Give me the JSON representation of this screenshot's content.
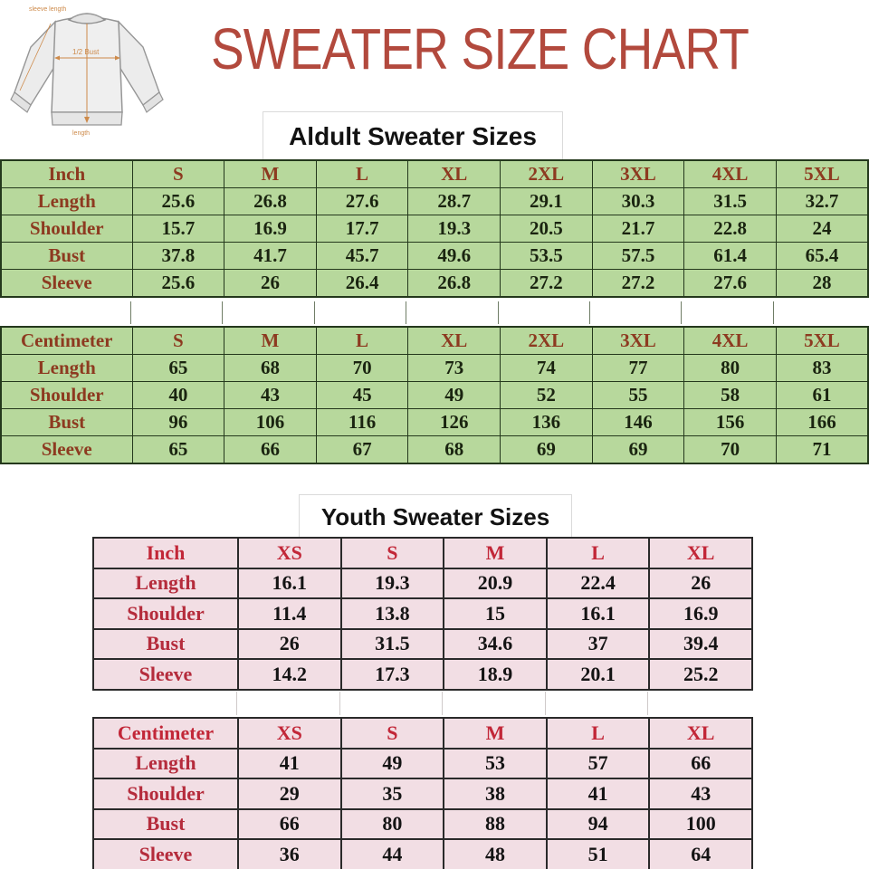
{
  "title": "SWEATER SIZE CHART",
  "sections": {
    "adult": {
      "heading": "Aldult Sweater Sizes"
    },
    "youth": {
      "heading": "Youth Sweater Sizes"
    }
  },
  "diagram": {
    "labels": {
      "sleeve": "sleeve length",
      "bust": "1/2 Bust",
      "length": "length"
    }
  },
  "colors": {
    "title": "#b2493d",
    "adult_table_bg": "#b7d89c",
    "adult_table_border": "#24381c",
    "adult_header_text": "#8d3a20",
    "adult_value_text": "#1a2410",
    "youth_table_bg": "#f2dee4",
    "youth_table_border": "#2a2a2a",
    "youth_header_text": "#c22738",
    "youth_value_text": "#141414",
    "annotation_orange": "#cd8a4a"
  },
  "tables": {
    "adult_inch": {
      "unit": "Inch",
      "sizes": [
        "S",
        "M",
        "L",
        "XL",
        "2XL",
        "3XL",
        "4XL",
        "5XL"
      ],
      "rows": [
        {
          "label": "Length",
          "values": [
            "25.6",
            "26.8",
            "27.6",
            "28.7",
            "29.1",
            "30.3",
            "31.5",
            "32.7"
          ]
        },
        {
          "label": "Shoulder",
          "values": [
            "15.7",
            "16.9",
            "17.7",
            "19.3",
            "20.5",
            "21.7",
            "22.8",
            "24"
          ]
        },
        {
          "label": "Bust",
          "values": [
            "37.8",
            "41.7",
            "45.7",
            "49.6",
            "53.5",
            "57.5",
            "61.4",
            "65.4"
          ]
        },
        {
          "label": "Sleeve",
          "values": [
            "25.6",
            "26",
            "26.4",
            "26.8",
            "27.2",
            "27.2",
            "27.6",
            "28"
          ]
        }
      ]
    },
    "adult_cm": {
      "unit": "Centimeter",
      "sizes": [
        "S",
        "M",
        "L",
        "XL",
        "2XL",
        "3XL",
        "4XL",
        "5XL"
      ],
      "rows": [
        {
          "label": "Length",
          "values": [
            "65",
            "68",
            "70",
            "73",
            "74",
            "77",
            "80",
            "83"
          ]
        },
        {
          "label": "Shoulder",
          "values": [
            "40",
            "43",
            "45",
            "49",
            "52",
            "55",
            "58",
            "61"
          ]
        },
        {
          "label": "Bust",
          "values": [
            "96",
            "106",
            "116",
            "126",
            "136",
            "146",
            "156",
            "166"
          ]
        },
        {
          "label": "Sleeve",
          "values": [
            "65",
            "66",
            "67",
            "68",
            "69",
            "69",
            "70",
            "71"
          ]
        }
      ]
    },
    "youth_inch": {
      "unit": "Inch",
      "sizes": [
        "XS",
        "S",
        "M",
        "L",
        "XL"
      ],
      "rows": [
        {
          "label": "Length",
          "values": [
            "16.1",
            "19.3",
            "20.9",
            "22.4",
            "26"
          ]
        },
        {
          "label": "Shoulder",
          "values": [
            "11.4",
            "13.8",
            "15",
            "16.1",
            "16.9"
          ]
        },
        {
          "label": "Bust",
          "values": [
            "26",
            "31.5",
            "34.6",
            "37",
            "39.4"
          ]
        },
        {
          "label": "Sleeve",
          "values": [
            "14.2",
            "17.3",
            "18.9",
            "20.1",
            "25.2"
          ]
        }
      ]
    },
    "youth_cm": {
      "unit": "Centimeter",
      "sizes": [
        "XS",
        "S",
        "M",
        "L",
        "XL"
      ],
      "rows": [
        {
          "label": "Length",
          "values": [
            "41",
            "49",
            "53",
            "57",
            "66"
          ]
        },
        {
          "label": "Shoulder",
          "values": [
            "29",
            "35",
            "38",
            "41",
            "43"
          ]
        },
        {
          "label": "Bust",
          "values": [
            "66",
            "80",
            "88",
            "94",
            "100"
          ]
        },
        {
          "label": "Sleeve",
          "values": [
            "36",
            "44",
            "48",
            "51",
            "64"
          ]
        }
      ]
    }
  }
}
